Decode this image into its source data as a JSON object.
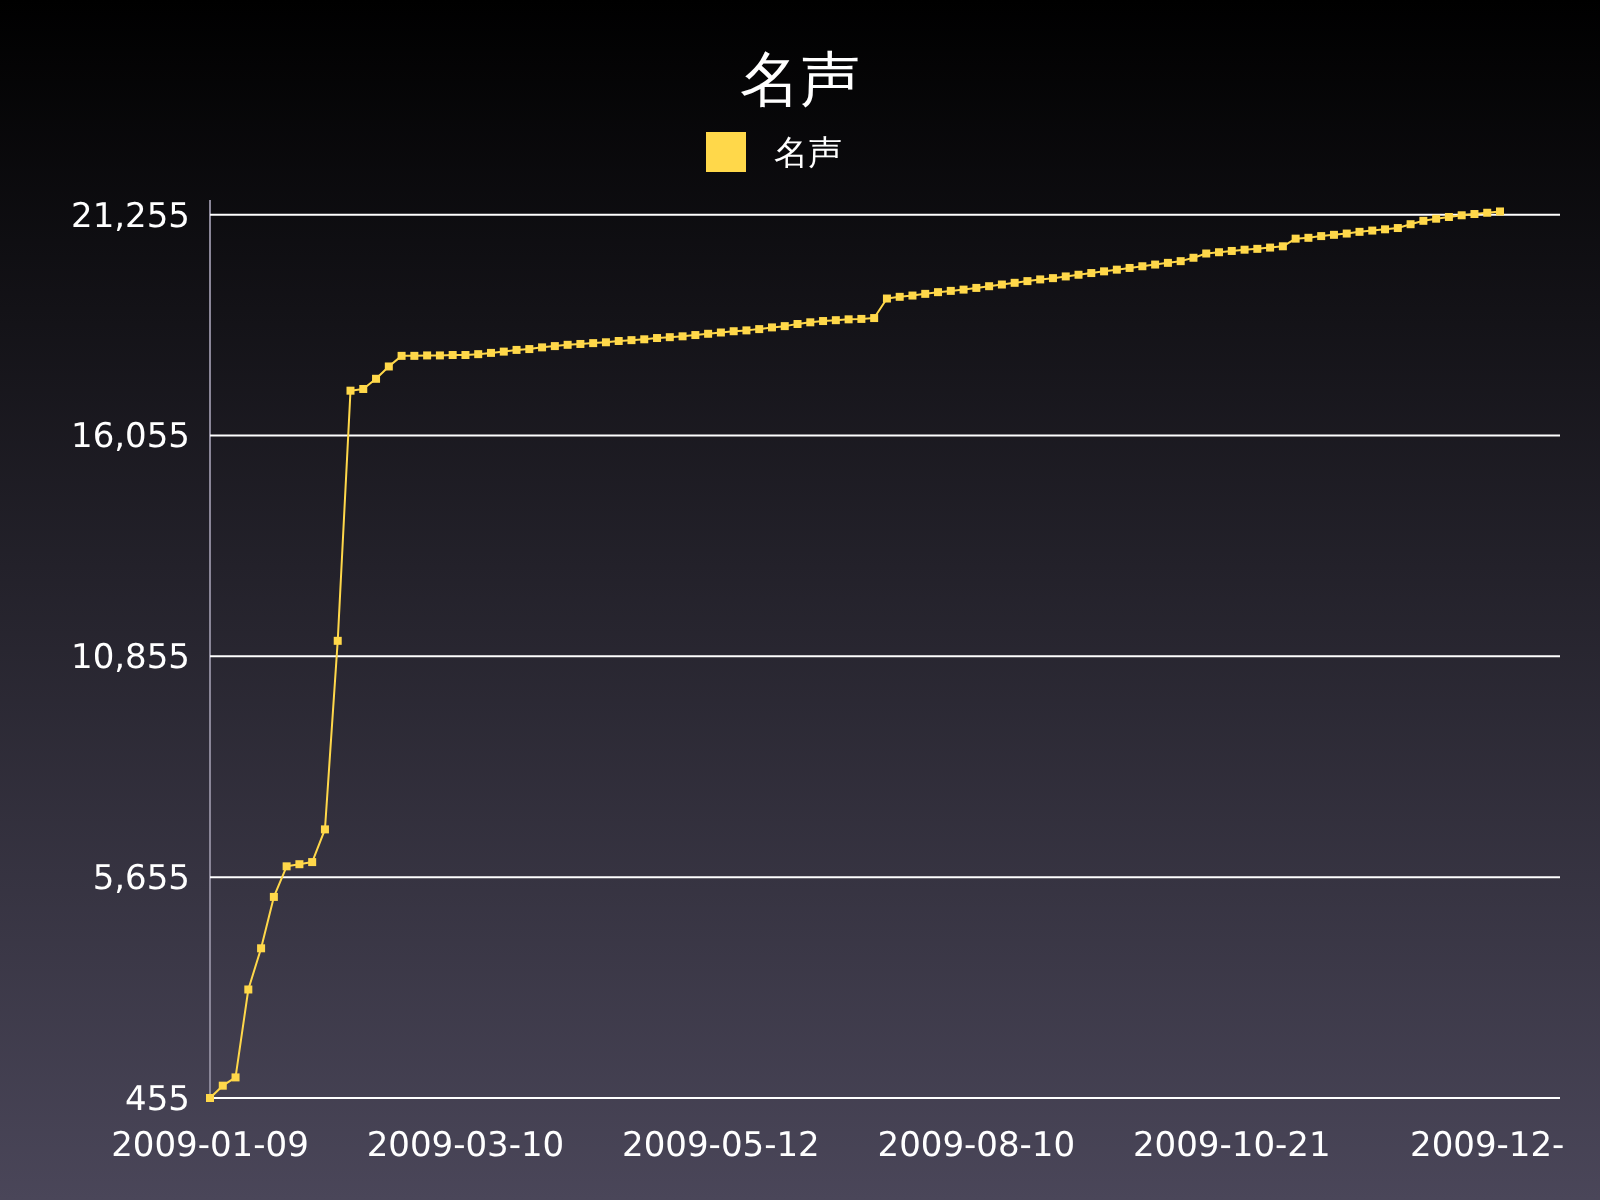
{
  "chart_data": {
    "type": "line",
    "title": "名声",
    "categories": [
      "2009-01-09",
      null,
      null,
      null,
      null,
      null,
      null,
      null,
      null,
      null,
      null,
      null,
      null,
      null,
      null,
      null,
      null,
      null,
      null,
      null,
      "2009-03-10",
      null,
      null,
      null,
      null,
      null,
      null,
      null,
      null,
      null,
      null,
      null,
      null,
      null,
      null,
      null,
      null,
      null,
      null,
      null,
      "2009-05-12",
      null,
      null,
      null,
      null,
      null,
      null,
      null,
      null,
      null,
      null,
      null,
      null,
      null,
      null,
      null,
      null,
      null,
      null,
      null,
      "2009-08-10",
      null,
      null,
      null,
      null,
      null,
      null,
      null,
      null,
      null,
      null,
      null,
      null,
      null,
      null,
      null,
      null,
      null,
      null,
      null,
      "2009-10-21",
      null,
      null,
      null,
      null,
      null,
      null,
      null,
      null,
      null,
      null,
      null,
      null,
      null,
      null,
      null,
      null,
      null,
      null,
      null,
      "2009-12-",
      null
    ],
    "series": [
      {
        "name": "名声",
        "color": "#ffd84a",
        "values": [
          455,
          745,
          940,
          3010,
          3980,
          5190,
          5910,
          5960,
          6010,
          6780,
          11220,
          17110,
          17150,
          17390,
          17680,
          17930,
          17930,
          17940,
          17940,
          17950,
          17950,
          17970,
          18000,
          18030,
          18070,
          18090,
          18130,
          18160,
          18190,
          18210,
          18230,
          18250,
          18280,
          18300,
          18320,
          18350,
          18370,
          18390,
          18420,
          18450,
          18480,
          18510,
          18530,
          18560,
          18600,
          18630,
          18680,
          18720,
          18750,
          18770,
          18790,
          18800,
          18820,
          19280,
          19320,
          19350,
          19390,
          19430,
          19460,
          19490,
          19530,
          19570,
          19610,
          19650,
          19690,
          19730,
          19760,
          19800,
          19840,
          19880,
          19920,
          19960,
          20000,
          20040,
          20080,
          20120,
          20160,
          20240,
          20340,
          20370,
          20400,
          20430,
          20450,
          20480,
          20510,
          20690,
          20710,
          20750,
          20780,
          20810,
          20850,
          20880,
          20910,
          20940,
          21030,
          21110,
          21160,
          21200,
          21240,
          21270,
          21300,
          21330
        ]
      }
    ],
    "ylim": [
      455,
      21600
    ],
    "yticks": [
      {
        "value": 455,
        "label": "455"
      },
      {
        "value": 5655,
        "label": "5,655"
      },
      {
        "value": 10855,
        "label": "10,855"
      },
      {
        "value": 16055,
        "label": "16,055"
      },
      {
        "value": 21255,
        "label": "21,255"
      }
    ],
    "grid": "y",
    "legend": "top",
    "marker": "square",
    "line_style": "solid"
  }
}
